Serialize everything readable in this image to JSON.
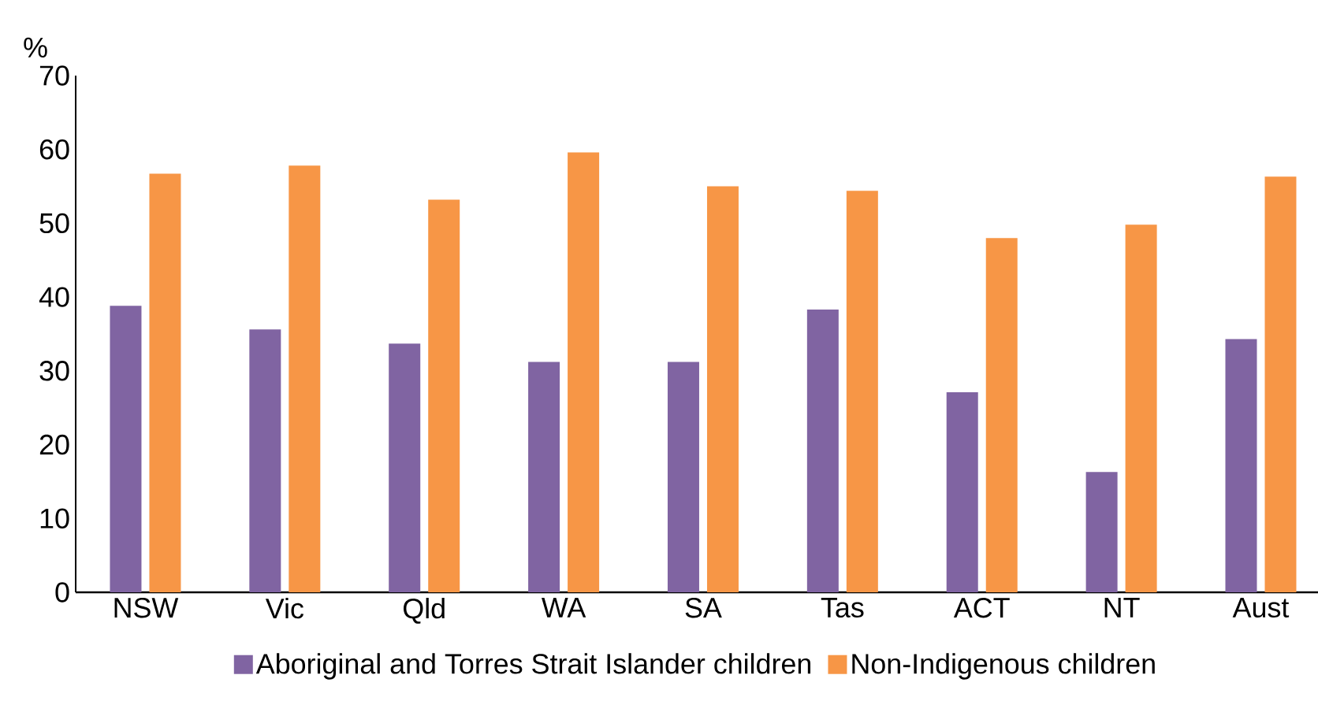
{
  "chart_data": {
    "type": "bar",
    "ylabel": "%",
    "categories": [
      "NSW",
      "Vic",
      "Qld",
      "WA",
      "SA",
      "Tas",
      "ACT",
      "NT",
      "Aust"
    ],
    "series": [
      {
        "name": "Aboriginal and Torres Strait Islander children",
        "color": "#8064a2",
        "values": [
          38.8,
          35.6,
          33.7,
          31.2,
          31.2,
          38.3,
          27.1,
          16.3,
          34.3
        ]
      },
      {
        "name": "Non-Indigenous children",
        "color": "#f79646",
        "values": [
          56.7,
          57.8,
          53.2,
          59.6,
          55.0,
          54.4,
          48.0,
          49.8,
          56.3
        ]
      }
    ],
    "ylim": [
      0,
      70
    ],
    "yticks": [
      0,
      10,
      20,
      30,
      40,
      50,
      60,
      70
    ],
    "legend": "bottom"
  }
}
